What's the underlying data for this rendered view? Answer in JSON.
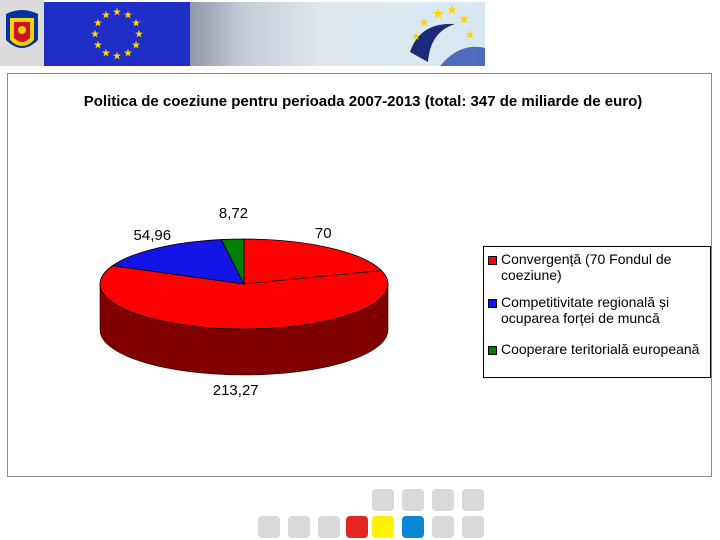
{
  "chart_data": {
    "type": "pie",
    "title": "Politica de coeziune pentru perioada 2007-2013 (total: 347 de miliarde de euro)",
    "categories": [
      "Convergență (70 Fondul de coeziune)",
      "Competitivitate regională și ocuparea forței de muncă",
      "Cooperare teritorială europeană"
    ],
    "slices": [
      {
        "label": "70",
        "value": 70,
        "color": "#ff0000",
        "side_color": "#800000"
      },
      {
        "label": "213,27",
        "value": 213.27,
        "color": "#ff0000",
        "side_color": "#800000"
      },
      {
        "label": "54,96",
        "value": 54.96,
        "color": "#1414e6",
        "side_color": "#0a0a80"
      },
      {
        "label": "8,72",
        "value": 8.72,
        "color": "#008000",
        "side_color": "#004000"
      }
    ],
    "legend": [
      {
        "lines": [
          "Convergență (70 Fondul de",
          "coeziune)"
        ],
        "color": "#ff0000"
      },
      {
        "lines": [
          "Competitivitate regională și",
          "ocuparea forței de muncă"
        ],
        "color": "#1414e6"
      },
      {
        "lines": [
          "Cooperare teritorială europeană"
        ],
        "color": "#008000"
      }
    ],
    "legend_position": "right",
    "is_3d": true
  },
  "decor": {
    "colors": {
      "flag_blue": "#1f2ec7",
      "star_yellow": "#ffd400",
      "frame_border": "#8a8a8a"
    },
    "bottom_tiles": [
      "#d9d9d9",
      "#d9d9d9",
      "#d9d9d9",
      "#d9d9d9",
      "#d9d9d9",
      "#d9d9d9",
      "#d9d9d9",
      "#e32420",
      "#fff200",
      "#0a86d6",
      "#d9d9d9",
      "#d9d9d9"
    ]
  }
}
